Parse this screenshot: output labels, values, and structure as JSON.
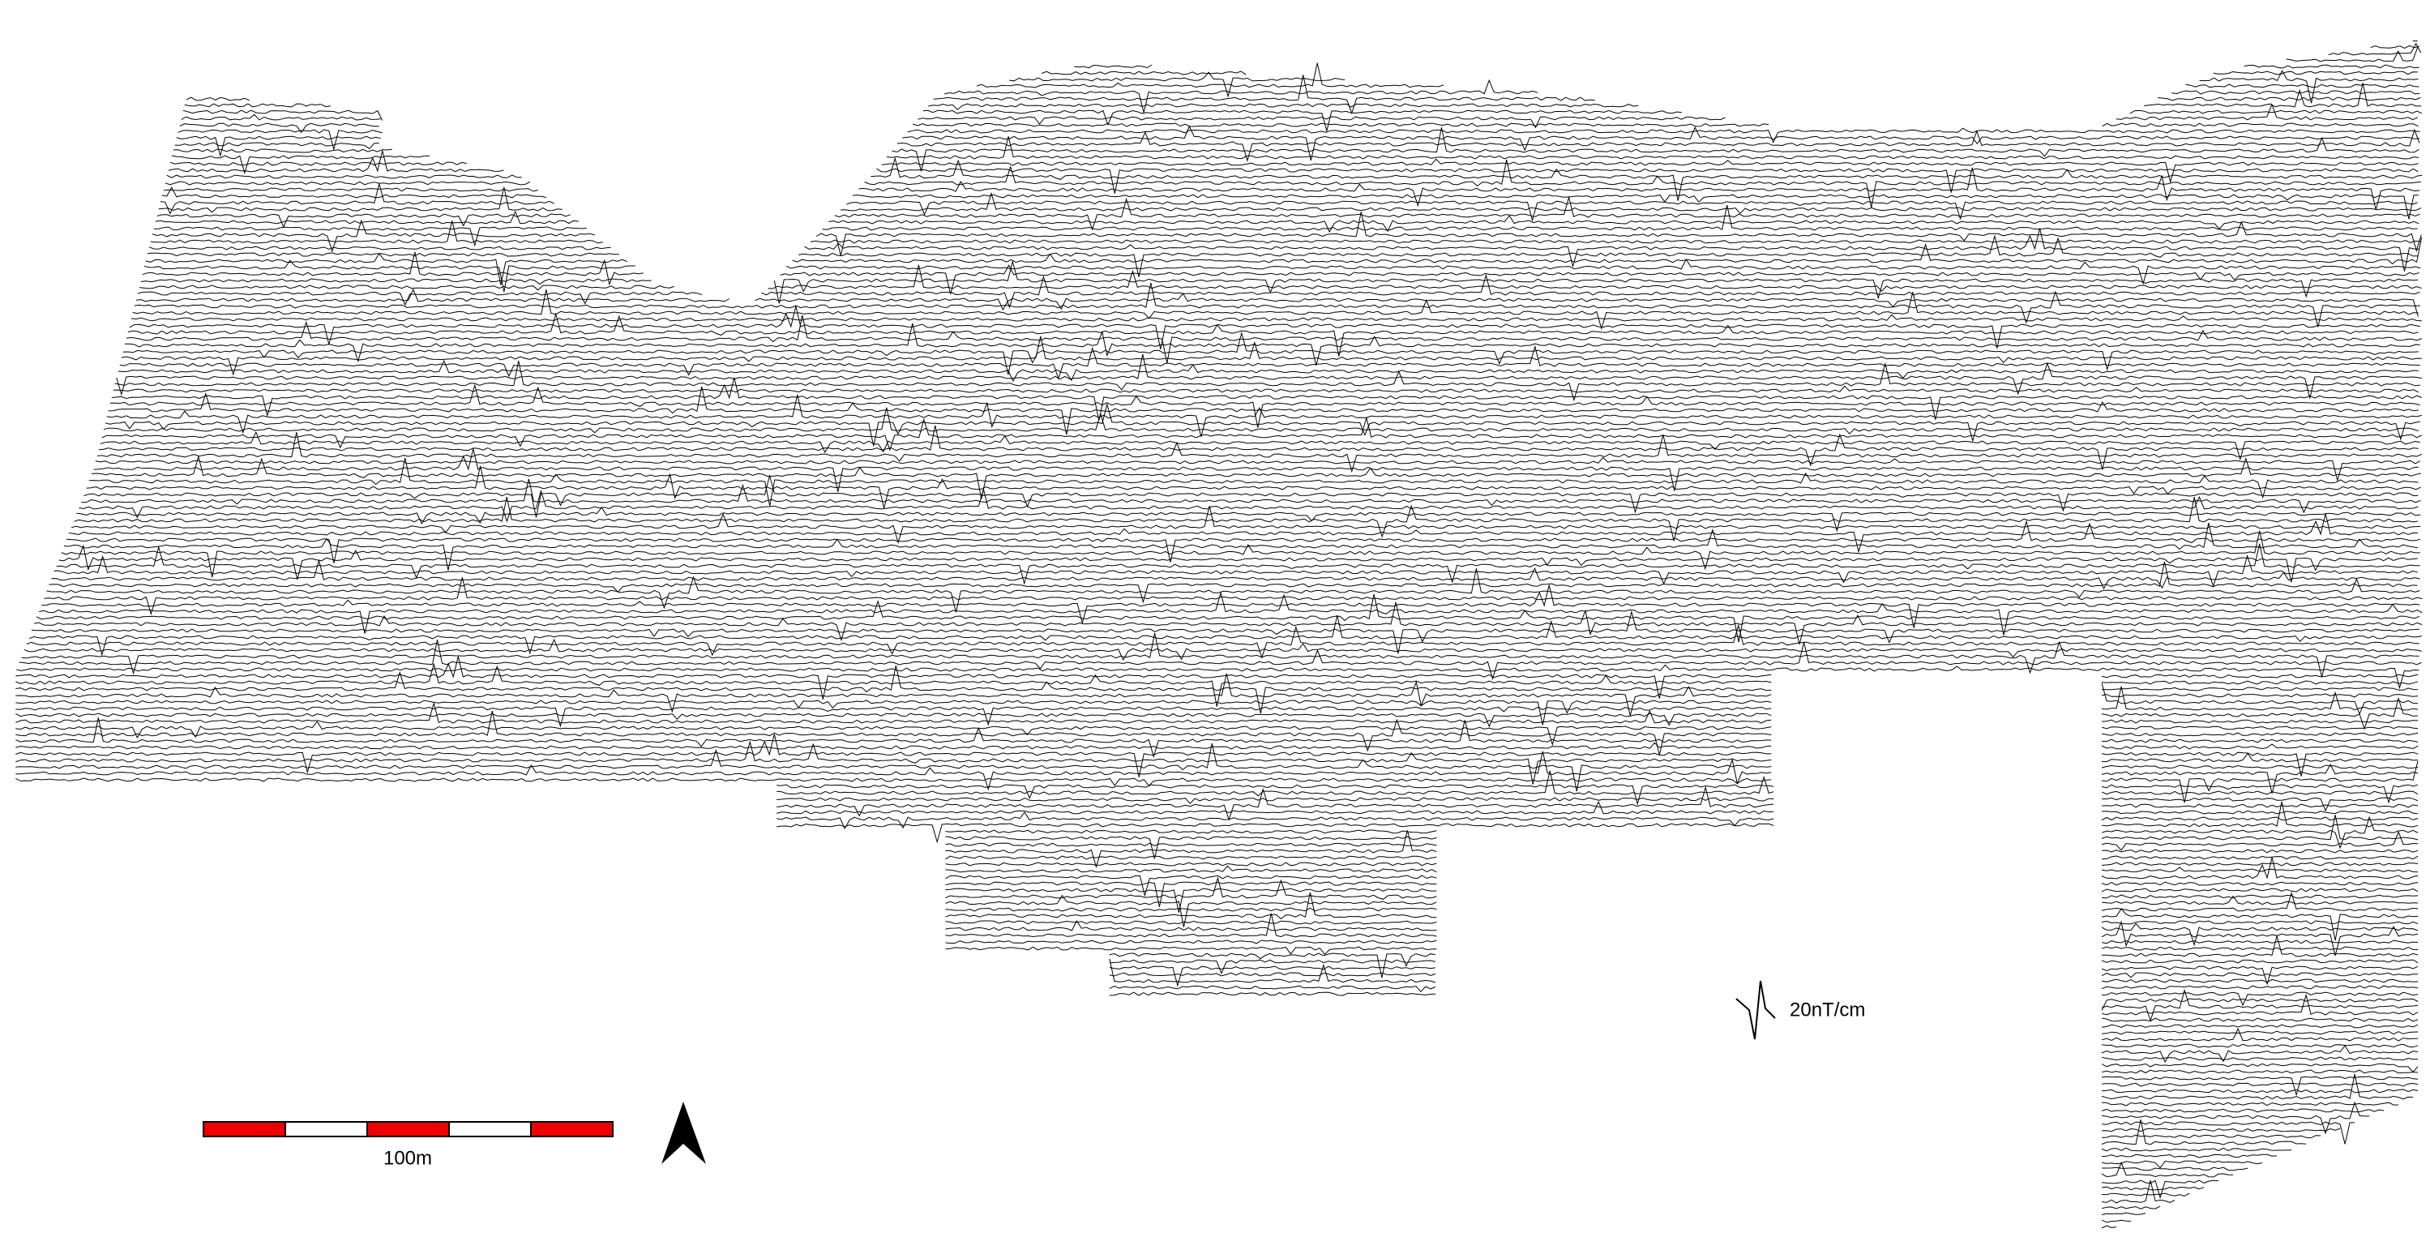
{
  "scale_bar": {
    "label": "100m"
  },
  "trace_scale": {
    "label": "20nT/cm"
  }
}
